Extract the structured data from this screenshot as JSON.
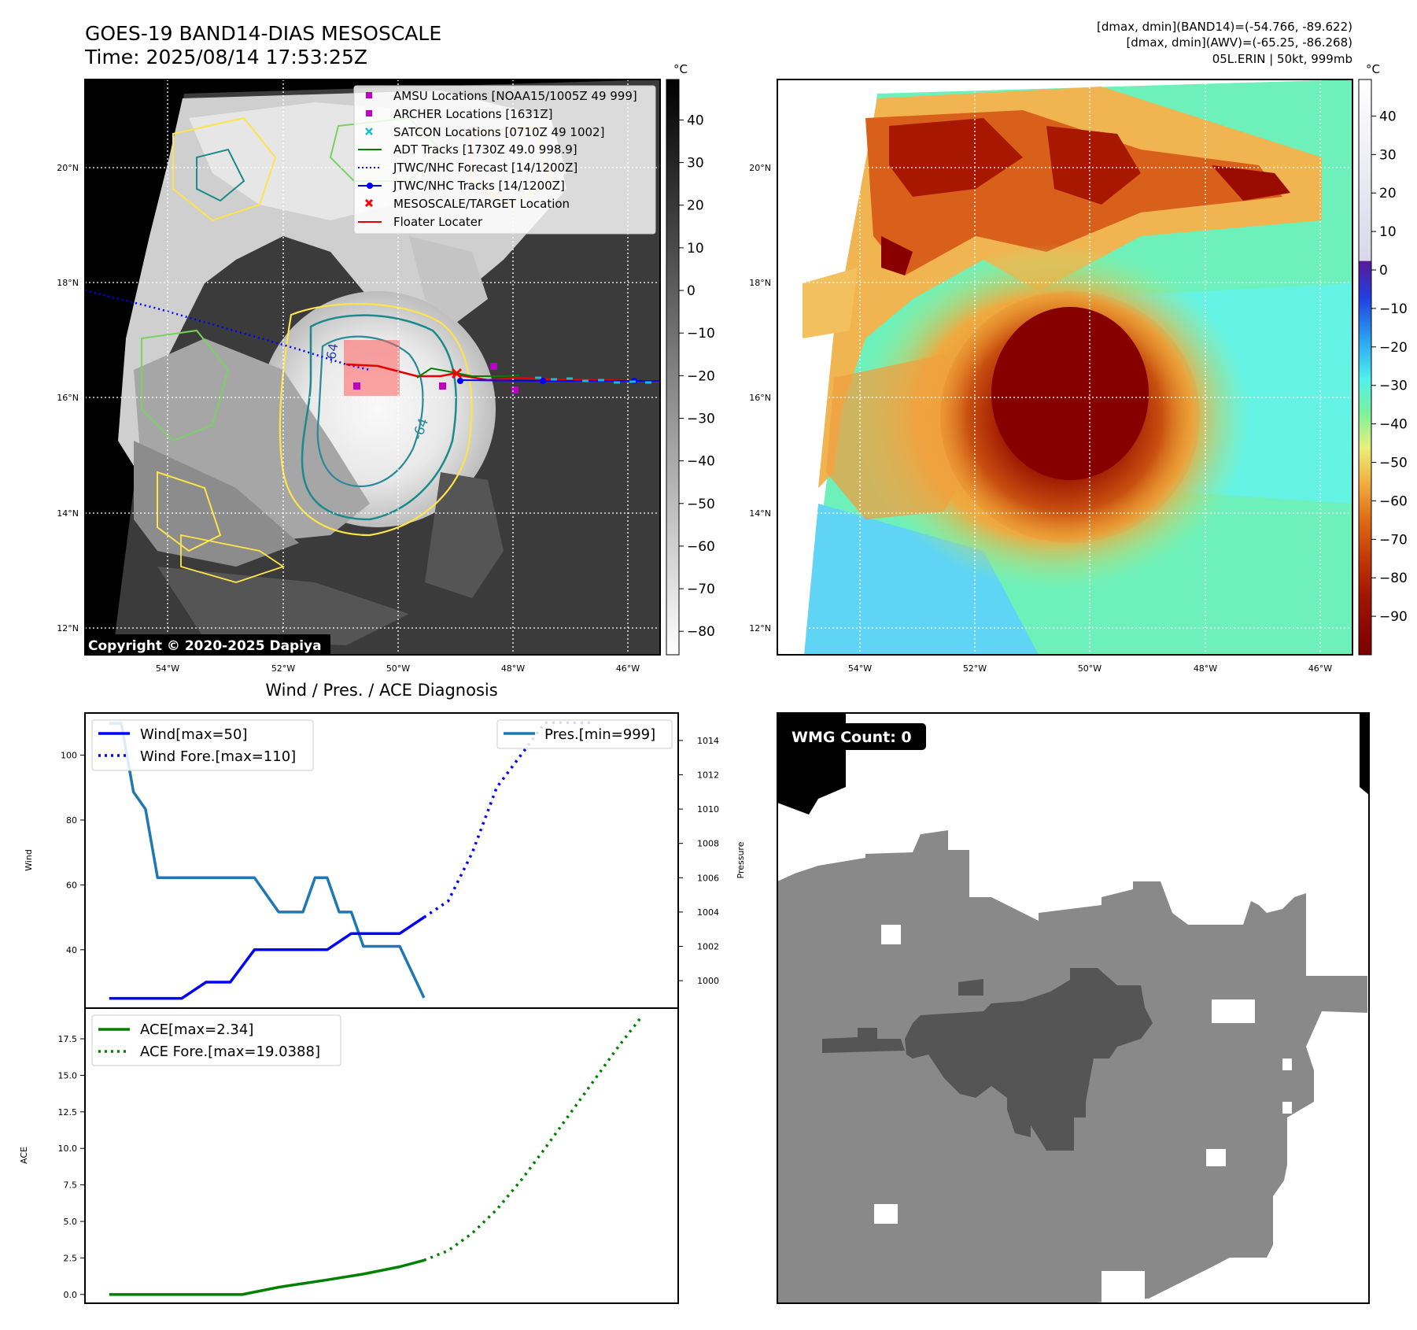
{
  "top_left": {
    "title_line1": "GOES-19 BAND14-DIAS MESOSCALE",
    "title_line2": "Time: 2025/08/14 17:53:25Z",
    "copyright": "Copyright © 2020-2025 Dapiya",
    "colorbar_unit": "°C",
    "colorbar_ticks": [
      "40",
      "30",
      "20",
      "10",
      "0",
      "−10",
      "−20",
      "−30",
      "−40",
      "−50",
      "−60",
      "−70",
      "−80"
    ],
    "lat_labels": [
      "20°N",
      "18°N",
      "16°N",
      "14°N",
      "12°N"
    ],
    "lon_labels": [
      "54°W",
      "52°W",
      "50°W",
      "48°W",
      "46°W"
    ],
    "contour_labels": [
      "-64",
      "-64"
    ],
    "legend": [
      {
        "label": "AMSU Locations [NOAA15/1005Z 49 999]",
        "color": "#bf00bf",
        "marker": "square"
      },
      {
        "label": "ARCHER Locations [1631Z]",
        "color": "#bf00bf",
        "marker": "square"
      },
      {
        "label": "SATCON Locations [0710Z 49 1002]",
        "color": "#17becf",
        "marker": "x"
      },
      {
        "label": "ADT Tracks [1730Z 49.0 998.9]",
        "color": "#008000",
        "marker": "line"
      },
      {
        "label": "JTWC/NHC Forecast [14/1200Z]",
        "color": "#0000ff",
        "marker": "dotted"
      },
      {
        "label": "JTWC/NHC Tracks [14/1200Z]",
        "color": "#0000ff",
        "marker": "line-dot"
      },
      {
        "label": "MESOSCALE/TARGET Location",
        "color": "#ff0000",
        "marker": "x"
      },
      {
        "label": "Floater Locater",
        "color": "#ff0000",
        "marker": "line"
      }
    ]
  },
  "top_right": {
    "info_line1": "[dmax, dmin](BAND14)=(-54.766, -89.622)",
    "info_line2": "[dmax, dmin](AWV)=(-65.25, -86.268)",
    "info_line3": "05L.ERIN | 50kt, 999mb",
    "colorbar_unit": "°C",
    "colorbar_ticks": [
      "40",
      "30",
      "20",
      "10",
      "0",
      "−10",
      "−20",
      "−30",
      "−40",
      "−50",
      "−60",
      "−70",
      "−80",
      "−90"
    ],
    "lat_labels": [
      "20°N",
      "18°N",
      "16°N",
      "14°N",
      "12°N"
    ],
    "lon_labels": [
      "54°W",
      "52°W",
      "50°W",
      "48°W",
      "46°W"
    ]
  },
  "bottom_right": {
    "badge": "WMG Count: 0"
  },
  "chart_data": [
    {
      "type": "line",
      "title": "Wind / Pres. / ACE Diagnosis",
      "ylabel": "Wind",
      "ylabel_right": "Pressure",
      "ylim": [
        22,
        113
      ],
      "ylim_right": [
        998.4,
        1015.6
      ],
      "yticks": [
        "40",
        "60",
        "80",
        "100"
      ],
      "yticks_right": [
        "1000",
        "1002",
        "1004",
        "1006",
        "1008",
        "1010",
        "1012",
        "1014"
      ],
      "legend_left": [
        "Wind[max=50]",
        "Wind Fore.[max=110]"
      ],
      "legend_right": [
        "Pres.[min=999]"
      ],
      "series": [
        {
          "name": "Wind[max=50]",
          "axis": "left",
          "style": "solid",
          "color": "#0000ff",
          "x": [
            0,
            1,
            2,
            3,
            4,
            5,
            6,
            7,
            8,
            9,
            10,
            11,
            12,
            13
          ],
          "values": [
            25,
            25,
            25,
            25,
            30,
            30,
            40,
            40,
            40,
            40,
            45,
            45,
            45,
            50
          ]
        },
        {
          "name": "Wind Fore.[max=110]",
          "axis": "left",
          "style": "dotted",
          "color": "#0000ff",
          "x": [
            13,
            14,
            15,
            16,
            17,
            18,
            19,
            20
          ],
          "values": [
            50,
            55,
            70,
            90,
            100,
            110,
            110,
            110
          ]
        },
        {
          "name": "Pres.[min=999]",
          "axis": "right",
          "style": "solid",
          "color": "#1f77b4",
          "x": [
            0,
            0.5,
            1,
            1.5,
            2,
            3,
            4,
            5,
            6,
            7,
            8,
            8.5,
            9,
            9.5,
            10,
            10.5,
            11,
            12,
            13
          ],
          "values": [
            1015,
            1015,
            1011,
            1010,
            1006,
            1006,
            1006,
            1006,
            1006,
            1004,
            1004,
            1006,
            1006,
            1004,
            1004,
            1002,
            1002,
            1002,
            999
          ]
        }
      ]
    },
    {
      "type": "line",
      "title": "",
      "ylabel": "ACE",
      "ylim": [
        -0.6,
        19.6
      ],
      "yticks": [
        "0.0",
        "2.5",
        "5.0",
        "7.5",
        "10.0",
        "12.5",
        "15.0",
        "17.5"
      ],
      "legend": [
        "ACE[max=2.34]",
        "ACE Fore.[max=19.0388]"
      ],
      "series": [
        {
          "name": "ACE[max=2.34]",
          "style": "solid",
          "color": "#008000",
          "x": [
            0,
            2,
            4,
            5.5,
            7,
            9,
            10.5,
            12,
            13
          ],
          "values": [
            0,
            0,
            0,
            0,
            0.5,
            1.0,
            1.4,
            1.9,
            2.34
          ]
        },
        {
          "name": "ACE Fore.[max=19.0388]",
          "style": "dotted",
          "color": "#008000",
          "x": [
            13,
            14,
            15,
            16,
            17,
            18,
            19,
            20,
            21,
            22
          ],
          "values": [
            2.34,
            3.0,
            4.2,
            5.8,
            7.8,
            10.0,
            12.3,
            14.6,
            16.9,
            19.0388
          ]
        }
      ]
    }
  ]
}
